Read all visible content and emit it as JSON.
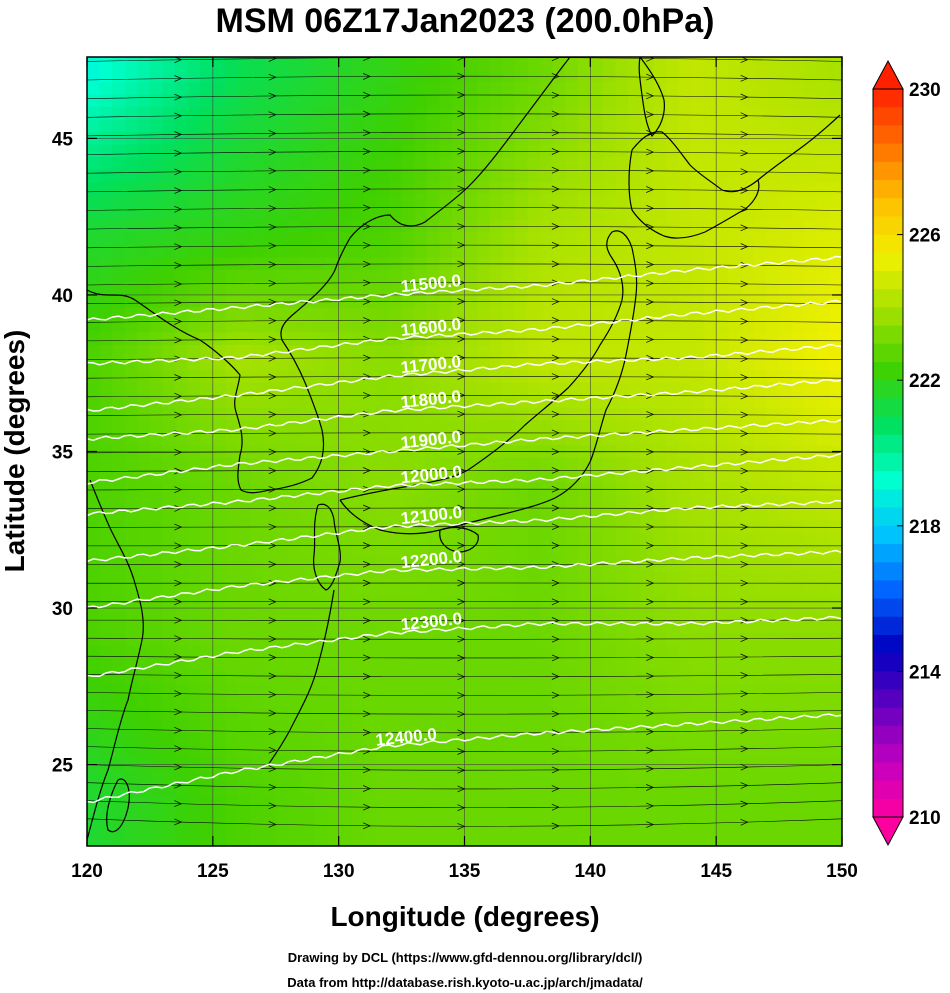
{
  "chart_data": {
    "type": "heatmap",
    "title": "MSM 06Z17Jan2023 (200.0hPa)",
    "xlabel": "Longitude (degrees)",
    "ylabel": "Latitude  (degrees)",
    "xlim": [
      120,
      150
    ],
    "ylim": [
      22.4,
      47.6
    ],
    "x_ticks": [
      120,
      125,
      130,
      135,
      140,
      145,
      150
    ],
    "y_ticks": [
      25,
      30,
      35,
      40,
      45
    ],
    "colorbar": {
      "range": [
        210,
        230
      ],
      "ticks": [
        210,
        214,
        218,
        222,
        226,
        230
      ],
      "colors": [
        "#ff00a0",
        "#c000c0",
        "#6000c0",
        "#0000c0",
        "#0060ff",
        "#00c0ff",
        "#00ffd0",
        "#00e060",
        "#40d000",
        "#a0e000",
        "#f0f000",
        "#ffc000",
        "#ff7000",
        "#ff2000"
      ]
    },
    "field_temperature_K": {
      "lon": [
        120,
        126,
        132,
        138,
        144,
        150
      ],
      "lat": [
        47,
        42,
        38,
        34,
        29,
        24
      ],
      "values": [
        [
          219.0,
          221.0,
          222.0,
          223.0,
          224.5,
          224.0
        ],
        [
          221.5,
          222.0,
          222.5,
          224.0,
          224.5,
          225.0
        ],
        [
          222.5,
          224.0,
          223.5,
          224.5,
          224.5,
          225.5
        ],
        [
          222.5,
          223.0,
          223.5,
          223.0,
          224.0,
          224.5
        ],
        [
          222.5,
          223.0,
          223.0,
          223.0,
          223.5,
          223.5
        ],
        [
          221.5,
          222.5,
          223.0,
          223.0,
          223.0,
          223.0
        ]
      ]
    },
    "geopotential_height_contours": {
      "levels": [
        11500,
        11600,
        11700,
        11800,
        11900,
        12000,
        12100,
        12200,
        12300,
        12400
      ],
      "labels": [
        "11500.0",
        "11600.0",
        "11700.0",
        "11800.0",
        "11900.0",
        "12000.0",
        "12100.0",
        "12200.0",
        "12300.0",
        "12400.0"
      ],
      "lat_at_lon": {
        "lon": [
          120,
          126,
          132,
          138,
          144,
          150
        ],
        "values": [
          [
            39.2,
            39.6,
            40.0,
            40.3,
            40.8,
            41.2
          ],
          [
            37.8,
            38.0,
            38.6,
            38.9,
            39.4,
            39.8
          ],
          [
            36.3,
            36.8,
            37.4,
            37.8,
            38.0,
            38.4
          ],
          [
            35.4,
            35.7,
            36.3,
            36.6,
            36.9,
            37.3
          ],
          [
            34.0,
            34.6,
            35.0,
            35.4,
            35.7,
            36.0
          ],
          [
            33.0,
            33.4,
            33.9,
            34.1,
            34.5,
            34.9
          ],
          [
            31.5,
            32.0,
            32.6,
            32.8,
            33.2,
            33.4
          ],
          [
            30.0,
            30.7,
            31.2,
            31.3,
            31.6,
            31.8
          ],
          [
            27.8,
            28.6,
            29.2,
            29.5,
            29.5,
            29.7
          ],
          [
            23.8,
            24.8,
            25.6,
            26.0,
            26.3,
            26.6
          ]
        ]
      }
    },
    "wind_streamlines": {
      "direction": "west-to-east",
      "lat_range": [
        22.4,
        47.6
      ]
    }
  },
  "credits": {
    "line1": "Drawing by DCL (https://www.gfd-dennou.org/library/dcl/)",
    "line2": "Data from http://database.rish.kyoto-u.ac.jp/arch/jmadata/"
  }
}
